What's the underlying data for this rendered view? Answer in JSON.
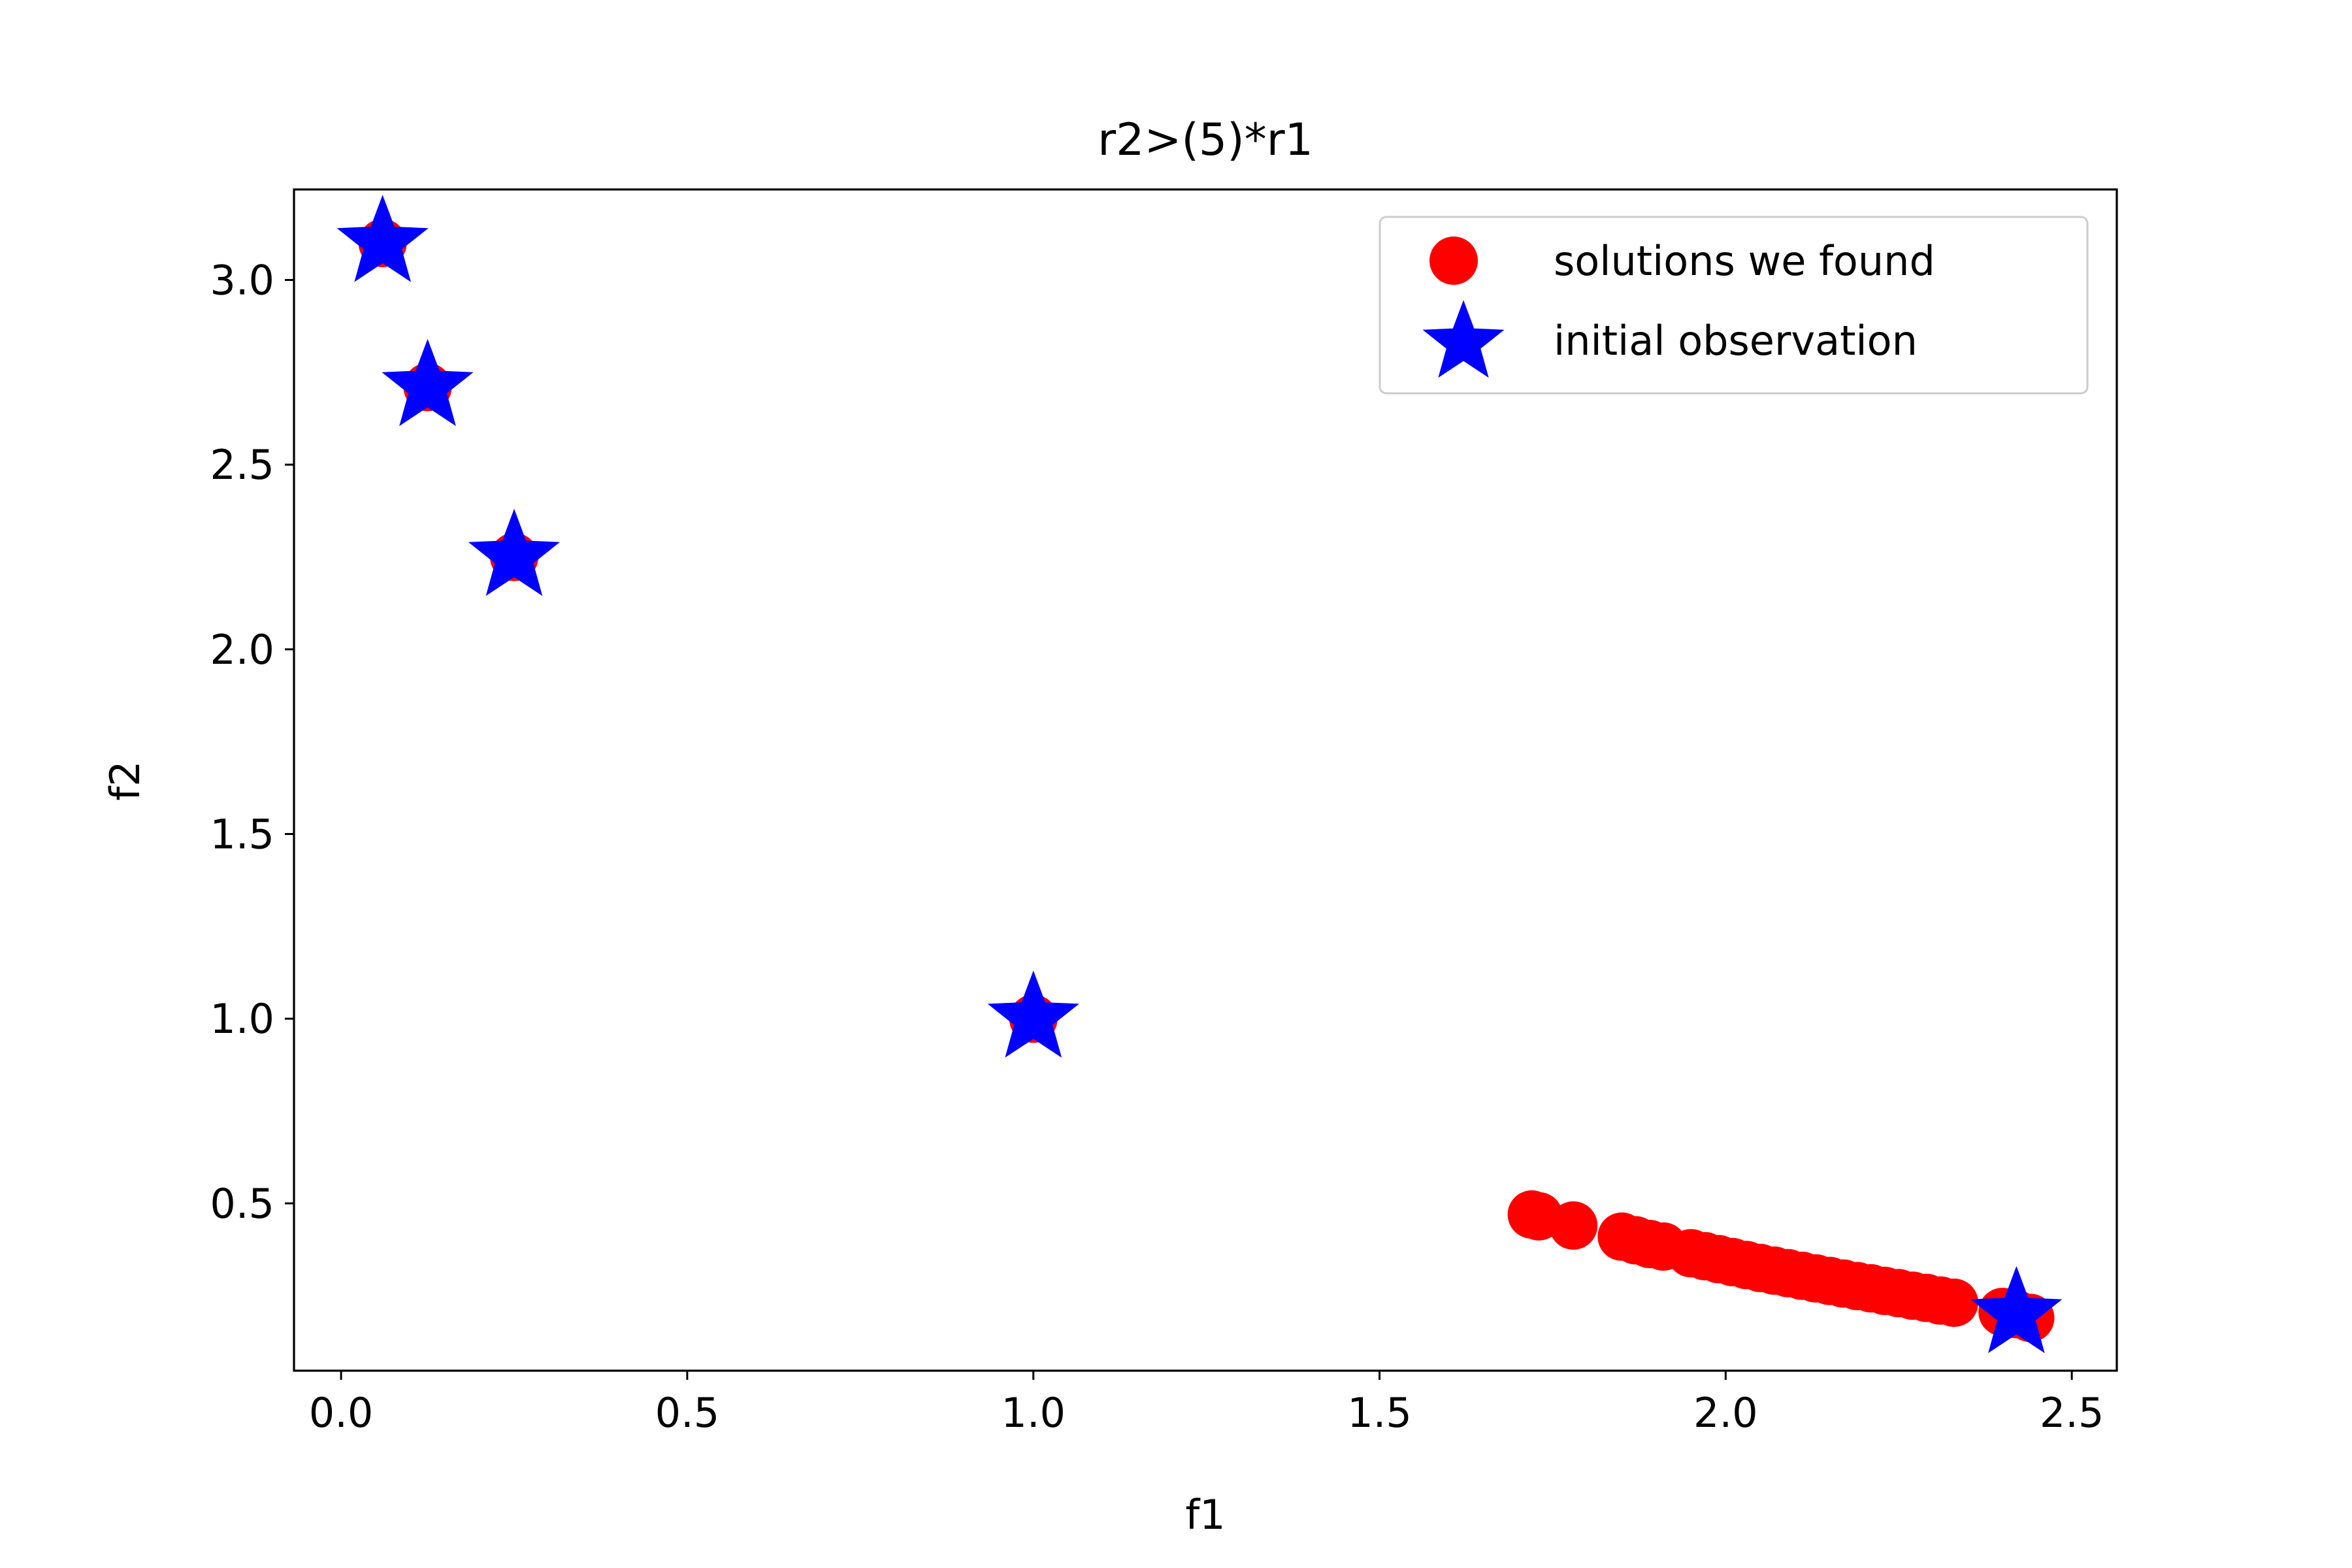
{
  "chart_data": {
    "type": "scatter",
    "title": "r2>(5)*r1",
    "xlabel": "f1",
    "ylabel": "f2",
    "xlim": [
      -0.068,
      2.565
    ],
    "ylim": [
      0.047,
      3.245
    ],
    "xticks": [
      0.0,
      0.5,
      1.0,
      1.5,
      2.0,
      2.5
    ],
    "xtick_labels": [
      "0.0",
      "0.5",
      "1.0",
      "1.5",
      "2.0",
      "2.5"
    ],
    "yticks": [
      0.5,
      1.0,
      1.5,
      2.0,
      2.5,
      3.0
    ],
    "ytick_labels": [
      "0.5",
      "1.0",
      "1.5",
      "2.0",
      "2.5",
      "3.0"
    ],
    "grid": false,
    "legend_position": "top-right",
    "series": [
      {
        "name": "solutions we found",
        "marker": "circle",
        "color": "#ff0000",
        "points": [
          [
            0.06,
            3.1
          ],
          [
            0.125,
            2.71
          ],
          [
            0.25,
            2.25
          ],
          [
            1.0,
            1.0
          ],
          [
            1.72,
            0.47
          ],
          [
            1.73,
            0.465
          ],
          [
            1.78,
            0.44
          ],
          [
            1.85,
            0.41
          ],
          [
            1.87,
            0.4
          ],
          [
            1.89,
            0.39
          ],
          [
            1.91,
            0.383
          ],
          [
            1.95,
            0.365
          ],
          [
            1.97,
            0.357
          ],
          [
            1.99,
            0.349
          ],
          [
            2.01,
            0.341
          ],
          [
            2.03,
            0.333
          ],
          [
            2.05,
            0.325
          ],
          [
            2.07,
            0.318
          ],
          [
            2.09,
            0.311
          ],
          [
            2.11,
            0.304
          ],
          [
            2.13,
            0.297
          ],
          [
            2.15,
            0.29
          ],
          [
            2.17,
            0.283
          ],
          [
            2.19,
            0.276
          ],
          [
            2.21,
            0.27
          ],
          [
            2.23,
            0.263
          ],
          [
            2.25,
            0.257
          ],
          [
            2.27,
            0.25
          ],
          [
            2.29,
            0.244
          ],
          [
            2.31,
            0.237
          ],
          [
            2.33,
            0.231
          ],
          [
            2.4,
            0.206
          ],
          [
            2.42,
            0.2
          ],
          [
            2.44,
            0.19
          ]
        ]
      },
      {
        "name": "initial observation",
        "marker": "star",
        "color": "#0000ff",
        "points": [
          [
            0.06,
            3.1
          ],
          [
            0.125,
            2.71
          ],
          [
            0.25,
            2.25
          ],
          [
            1.0,
            1.0
          ],
          [
            2.42,
            0.2
          ]
        ]
      }
    ]
  }
}
